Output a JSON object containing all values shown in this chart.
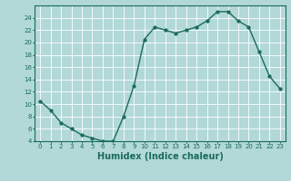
{
  "x": [
    0,
    1,
    2,
    3,
    4,
    5,
    6,
    7,
    8,
    9,
    10,
    11,
    12,
    13,
    14,
    15,
    16,
    17,
    18,
    19,
    20,
    21,
    22,
    23
  ],
  "y": [
    10.5,
    9.0,
    7.0,
    6.0,
    5.0,
    4.5,
    4.0,
    4.0,
    8.0,
    13.0,
    20.5,
    22.5,
    22.0,
    21.5,
    22.0,
    22.5,
    23.5,
    25.0,
    25.0,
    23.5,
    22.5,
    18.5,
    14.5,
    12.5
  ],
  "xlabel": "Humidex (Indice chaleur)",
  "bg_color": "#b2d8d8",
  "line_color": "#1a6b5a",
  "grid_color": "#ffffff",
  "ylim": [
    4,
    26
  ],
  "xlim": [
    -0.5,
    23.5
  ],
  "yticks": [
    4,
    6,
    8,
    10,
    12,
    14,
    16,
    18,
    20,
    22,
    24
  ],
  "xticks": [
    0,
    1,
    2,
    3,
    4,
    5,
    6,
    7,
    8,
    9,
    10,
    11,
    12,
    13,
    14,
    15,
    16,
    17,
    18,
    19,
    20,
    21,
    22,
    23
  ],
  "tick_fontsize": 5,
  "xlabel_fontsize": 7,
  "marker_size": 2.5,
  "line_width": 1.0
}
